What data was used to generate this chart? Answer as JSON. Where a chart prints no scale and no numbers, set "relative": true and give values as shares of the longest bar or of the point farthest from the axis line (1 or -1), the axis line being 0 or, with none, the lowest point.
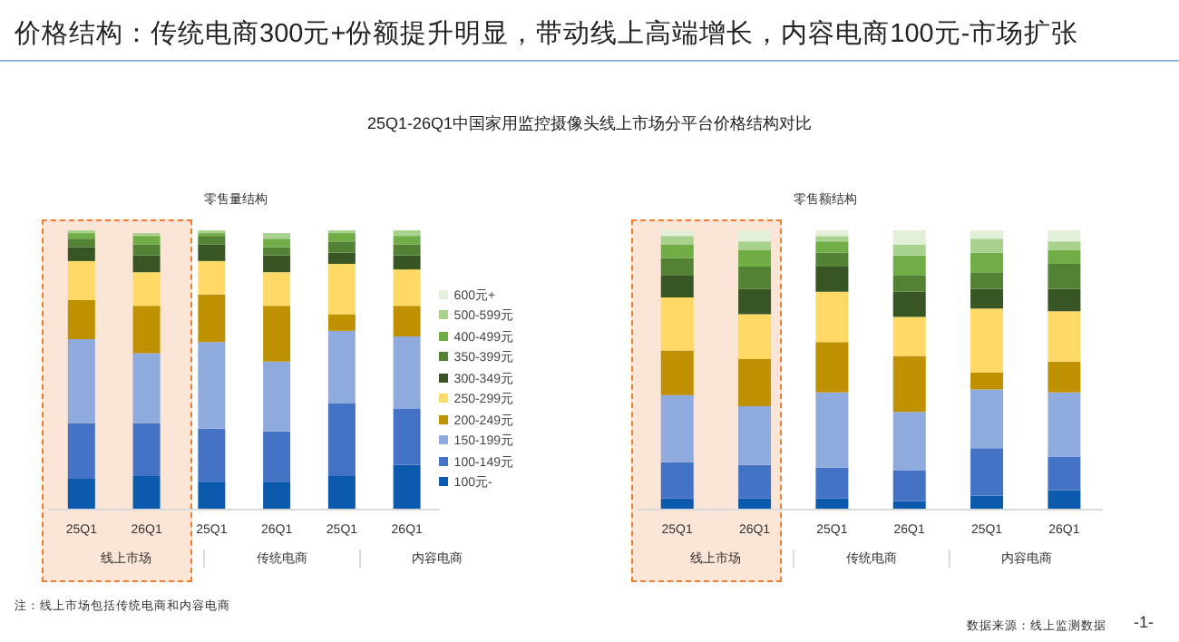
{
  "chart_data": [
    {
      "type": "bar",
      "title": "价格结构：传统电商300元+份额提升明显，带动线上高端增长，内容电商100元-市场扩张",
      "subtitle": "25Q1-26Q1中国家用监控摄像头线上市场分平台价格结构对比",
      "ylabel": "零售量结构",
      "relative": true,
      "stacked": true,
      "legend": "right",
      "categories": [
        "25Q1",
        "26Q1",
        "25Q1",
        "26Q1",
        "25Q1",
        "26Q1"
      ],
      "annotations": [
        "线上市场",
        "传统电商",
        "内容电商"
      ],
      "series": [
        {
          "name": "100元-",
          "color": "#0b5aad",
          "values": [
            0.11,
            0.12,
            0.1,
            0.1,
            0.12,
            0.16
          ]
        },
        {
          "name": "100-149元",
          "color": "#4472c4",
          "values": [
            0.2,
            0.19,
            0.19,
            0.18,
            0.26,
            0.2
          ]
        },
        {
          "name": "150-199元",
          "color": "#8faadc",
          "values": [
            0.3,
            0.25,
            0.31,
            0.25,
            0.26,
            0.26
          ]
        },
        {
          "name": "200-249元",
          "color": "#bf9000",
          "values": [
            0.14,
            0.17,
            0.17,
            0.2,
            0.06,
            0.11
          ]
        },
        {
          "name": "250-299元",
          "color": "#ffd966",
          "values": [
            0.14,
            0.12,
            0.12,
            0.12,
            0.18,
            0.13
          ]
        },
        {
          "name": "300-349元",
          "color": "#375623",
          "values": [
            0.05,
            0.06,
            0.06,
            0.06,
            0.04,
            0.05
          ]
        },
        {
          "name": "350-399元",
          "color": "#548235",
          "values": [
            0.03,
            0.04,
            0.03,
            0.03,
            0.04,
            0.04
          ]
        },
        {
          "name": "400-499元",
          "color": "#70ad47",
          "values": [
            0.02,
            0.03,
            0.01,
            0.03,
            0.03,
            0.03
          ]
        },
        {
          "name": "500-599元",
          "color": "#a9d18e",
          "values": [
            0.01,
            0.01,
            0.01,
            0.02,
            0.01,
            0.02
          ]
        },
        {
          "name": "600元+",
          "color": "#e2f0d9",
          "values": [
            0,
            null,
            0,
            null,
            0,
            0
          ]
        }
      ]
    },
    {
      "type": "bar",
      "ylabel": "零售额结构",
      "relative": true,
      "stacked": true,
      "categories": [
        "25Q1",
        "26Q1",
        "25Q1",
        "26Q1",
        "25Q1",
        "26Q1"
      ],
      "annotations": [
        "线上市场",
        "传统电商",
        "内容电商"
      ],
      "series": [
        {
          "color": "#0b5aad",
          "values": [
            0.04,
            0.04,
            0.04,
            0.03,
            0.05,
            0.07
          ]
        },
        {
          "color": "#4472c4",
          "values": [
            0.13,
            0.12,
            0.11,
            0.11,
            0.17,
            0.12
          ]
        },
        {
          "color": "#8faadc",
          "values": [
            0.24,
            0.21,
            0.27,
            0.21,
            0.21,
            0.23
          ]
        },
        {
          "color": "#bf9000",
          "values": [
            0.16,
            0.17,
            0.18,
            0.2,
            0.06,
            0.11
          ]
        },
        {
          "color": "#ffd966",
          "values": [
            0.19,
            0.16,
            0.18,
            0.14,
            0.23,
            0.18
          ]
        },
        {
          "color": "#375623",
          "values": [
            0.08,
            0.09,
            0.09,
            0.09,
            0.07,
            0.08
          ]
        },
        {
          "color": "#548235",
          "values": [
            0.06,
            0.08,
            0.05,
            0.06,
            0.06,
            0.09
          ]
        },
        {
          "color": "#70ad47",
          "values": [
            0.05,
            0.06,
            0.04,
            0.07,
            0.07,
            0.05
          ]
        },
        {
          "color": "#a9d18e",
          "values": [
            0.03,
            0.03,
            0.02,
            0.04,
            0.05,
            0.03
          ]
        },
        {
          "color": "#e2f0d9",
          "values": [
            0.02,
            0.04,
            0.02,
            0.05,
            0.03,
            0.04
          ]
        }
      ]
    },
    {
      "type": "other",
      "annotations": [
        "注：线上市场包括传统电商和内容电商",
        "数据来源：线上监测数据",
        "-1-"
      ]
    }
  ]
}
